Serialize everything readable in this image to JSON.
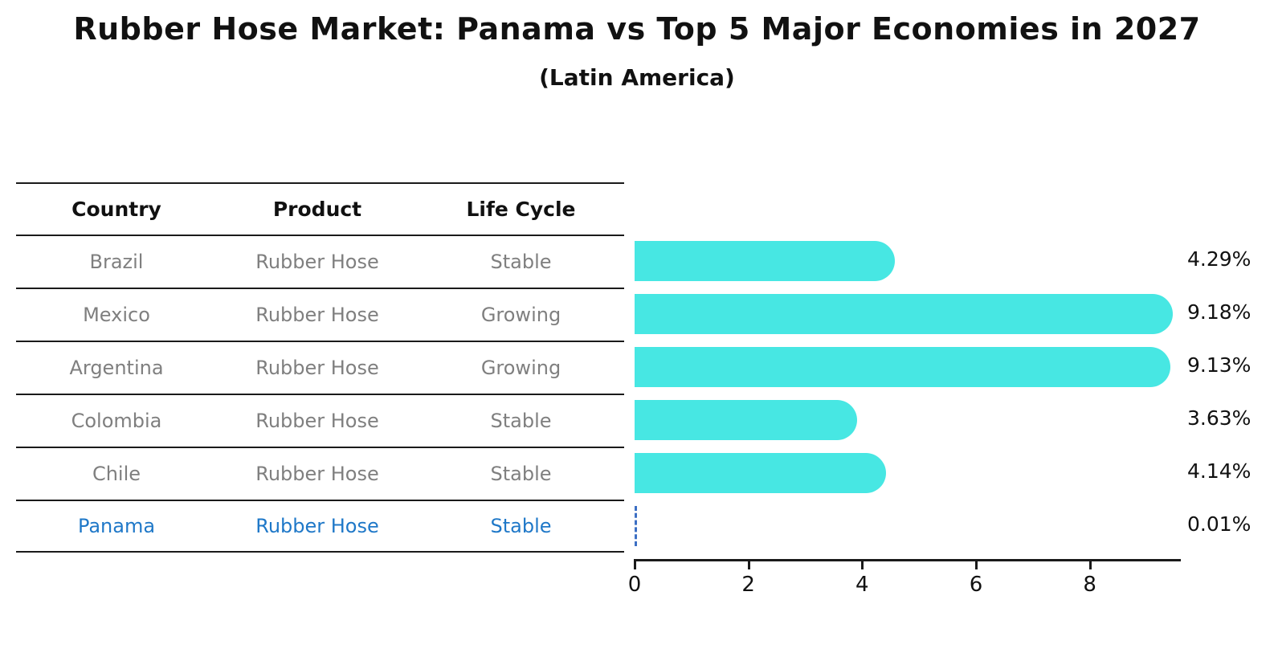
{
  "title": "Rubber Hose Market: Panama vs Top 5 Major Economies in 2027",
  "subtitle": "(Latin America)",
  "colors": {
    "bar": "#47e7e3",
    "highlight_text": "#1f78c8",
    "highlight_bar_dash": "#3c6fc4",
    "row_text": "#7f7f7f",
    "line": "#1a1a1a"
  },
  "table": {
    "headers": [
      "Country",
      "Product",
      "Life Cycle"
    ],
    "rows": [
      {
        "country": "Brazil",
        "product": "Rubber Hose",
        "life_cycle": "Stable",
        "highlight": false
      },
      {
        "country": "Mexico",
        "product": "Rubber Hose",
        "life_cycle": "Growing",
        "highlight": false
      },
      {
        "country": "Argentina",
        "product": "Rubber Hose",
        "life_cycle": "Growing",
        "highlight": false
      },
      {
        "country": "Colombia",
        "product": "Rubber Hose",
        "life_cycle": "Stable",
        "highlight": false
      },
      {
        "country": "Chile",
        "product": "Rubber Hose",
        "life_cycle": "Stable",
        "highlight": true
      }
    ]
  },
  "chart_data": {
    "type": "bar",
    "orientation": "horizontal",
    "title": "Rubber Hose Market: Panama vs Top 5 Major Economies in 2027 (Latin America)",
    "categories": [
      "Brazil",
      "Mexico",
      "Argentina",
      "Colombia",
      "Chile",
      "Panama"
    ],
    "values": [
      4.29,
      9.18,
      9.13,
      3.63,
      4.14,
      0.01
    ],
    "value_labels": [
      "4.29%",
      "9.18%",
      "9.13%",
      "3.63%",
      "4.14%",
      "0.01%"
    ],
    "series_meta": {
      "product": "Rubber Hose",
      "life_cycle": [
        "Stable",
        "Growing",
        "Growing",
        "Stable",
        "Stable",
        "Stable"
      ]
    },
    "highlight_category": "Panama",
    "xlabel": "",
    "ylabel": "",
    "xticks": [
      0,
      2,
      4,
      6,
      8
    ],
    "xlim": [
      0,
      9.6
    ],
    "grid": false,
    "legend": false
  }
}
